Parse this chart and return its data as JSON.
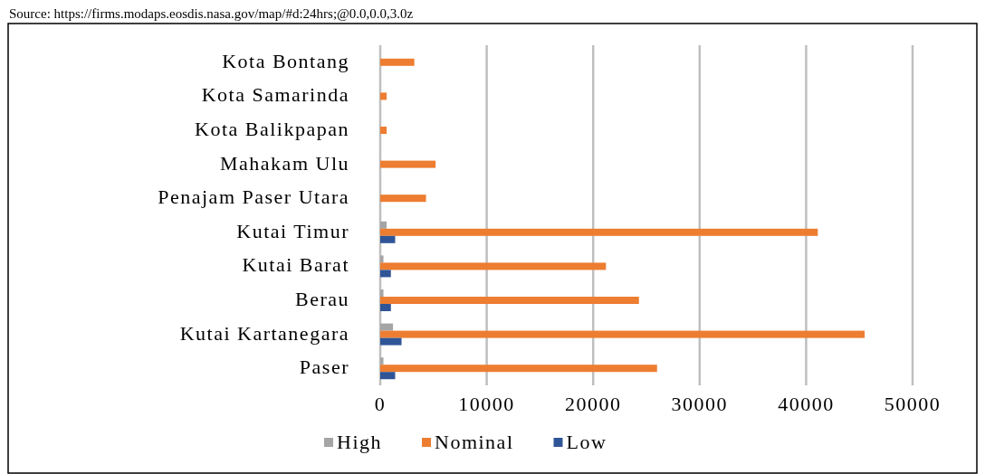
{
  "chart_data": {
    "type": "bar",
    "orientation": "horizontal",
    "annotations": [
      "Source: https://firms.modaps.eosdis.nasa.gov/map/#d:24hrs;@0.0,0.0,3.0z"
    ],
    "categories": [
      "Kota Bontang",
      "Kota Samarinda",
      "Kota Balikpapan",
      "Mahakam Ulu",
      "Penajam Paser Utara",
      "Kutai Timur",
      "Kutai Barat",
      "Berau",
      "Kutai Kartanegara",
      "Paser"
    ],
    "series": [
      {
        "name": "High",
        "color": "#a5a5a5",
        "values": [
          0,
          0,
          0,
          0,
          0,
          600,
          300,
          300,
          1200,
          300
        ]
      },
      {
        "name": "Nominal",
        "color": "#ed7d31",
        "values": [
          3200,
          600,
          600,
          5200,
          4300,
          41100,
          21200,
          24300,
          45500,
          26000
        ]
      },
      {
        "name": "Low",
        "color": "#2f5597",
        "values": [
          0,
          0,
          0,
          0,
          0,
          1400,
          1000,
          1000,
          2000,
          1400
        ]
      }
    ],
    "xlim": [
      0,
      50000
    ],
    "xticks": [
      0,
      10000,
      20000,
      30000,
      40000,
      50000
    ],
    "grid": "x",
    "legend": "bottom"
  }
}
